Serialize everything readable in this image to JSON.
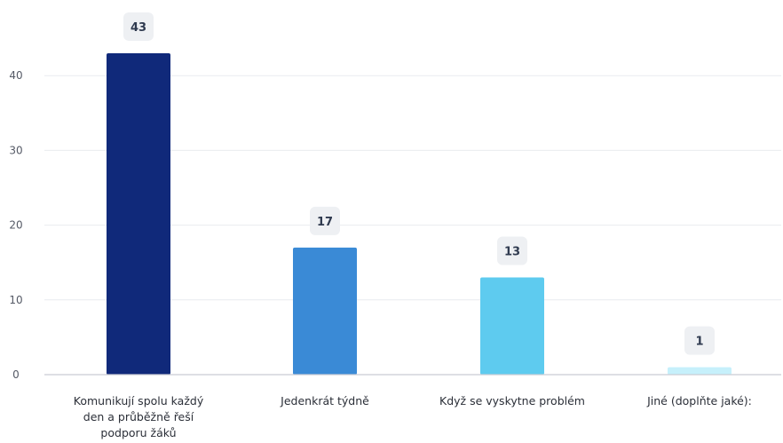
{
  "chart_data": {
    "type": "bar",
    "categories": [
      "Komunikují spolu každý den a průběžně řeší podporu žáků",
      "Jedenkrát týdně",
      "Když se vyskytne problém",
      "Jiné (doplňte jaké):"
    ],
    "category_lines": [
      [
        "Komunikují spolu každý",
        "den a průběžně řeší",
        "podporu žáků"
      ],
      [
        "Jedenkrát týdně"
      ],
      [
        "Když se vyskytne problém"
      ],
      [
        "Jiné (doplňte jaké):"
      ]
    ],
    "values": [
      43,
      17,
      13,
      1
    ],
    "value_labels": [
      "43",
      "17",
      "13",
      "1"
    ],
    "colors": [
      "#10297a",
      "#3a8ad6",
      "#5ecbef",
      "#c6f0fb"
    ],
    "yticks": [
      0,
      10,
      20,
      30,
      40
    ],
    "ytick_labels": [
      "0",
      "10",
      "20",
      "30",
      "40"
    ],
    "ylim": [
      0,
      47
    ],
    "grid": true,
    "legend": "none",
    "title": "",
    "xlabel": "",
    "ylabel": ""
  }
}
